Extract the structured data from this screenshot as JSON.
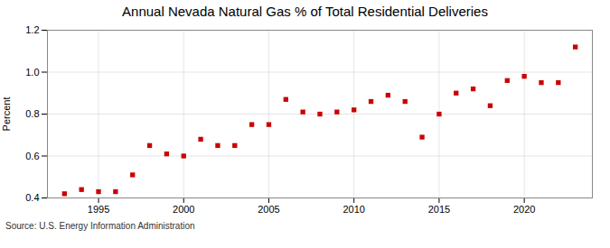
{
  "chart_data": {
    "type": "scatter",
    "title": "Annual Nevada Natural Gas % of Total Residential Deliveries",
    "ylabel": "Percent",
    "source": "Source: U.S. Energy Information Administration",
    "x": [
      1993,
      1994,
      1995,
      1996,
      1997,
      1998,
      1999,
      2000,
      2001,
      2002,
      2003,
      2004,
      2005,
      2006,
      2007,
      2008,
      2009,
      2010,
      2011,
      2012,
      2013,
      2014,
      2015,
      2016,
      2017,
      2018,
      2019,
      2020,
      2021,
      2022,
      2023
    ],
    "values": [
      0.42,
      0.44,
      0.43,
      0.43,
      0.51,
      0.65,
      0.61,
      0.6,
      0.68,
      0.65,
      0.65,
      0.75,
      0.75,
      0.87,
      0.81,
      0.8,
      0.81,
      0.82,
      0.86,
      0.89,
      0.86,
      0.69,
      0.8,
      0.9,
      0.92,
      0.84,
      0.96,
      0.98,
      0.95,
      0.95,
      1.12
    ],
    "color": "#cc0000",
    "marker": "square",
    "xlim": [
      1992,
      2024
    ],
    "xticks": [
      1995,
      2000,
      2005,
      2010,
      2015,
      2020
    ],
    "ylim": [
      0.4,
      1.2
    ],
    "yticks": [
      0.4,
      0.6,
      0.8,
      {
        "value": 1.0,
        "label": "1.0"
      },
      1.2
    ],
    "grid": true
  }
}
